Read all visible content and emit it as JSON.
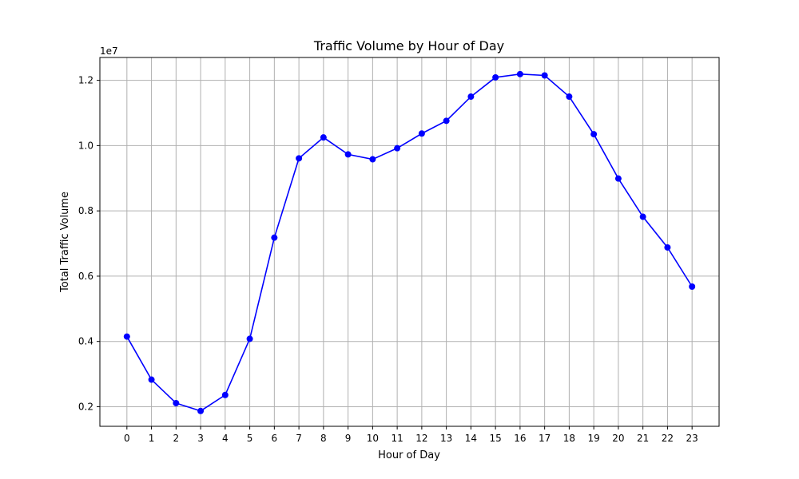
{
  "chart_data": {
    "type": "line",
    "title": "Traffic Volume by Hour of Day",
    "xlabel": "Hour of Day",
    "ylabel": "Total Traffic Volume",
    "y_offset_label": "1e7",
    "y_scale": 10000000,
    "x": [
      0,
      1,
      2,
      3,
      4,
      5,
      6,
      7,
      8,
      9,
      10,
      11,
      12,
      13,
      14,
      15,
      16,
      17,
      18,
      19,
      20,
      21,
      22,
      23
    ],
    "x_tick_labels": [
      "0",
      "1",
      "2",
      "3",
      "4",
      "5",
      "6",
      "7",
      "8",
      "9",
      "10",
      "11",
      "12",
      "13",
      "14",
      "15",
      "16",
      "17",
      "18",
      "19",
      "20",
      "21",
      "22",
      "23"
    ],
    "xlim": [
      -1.1,
      24.1
    ],
    "y_ticks": [
      0.2,
      0.4,
      0.6,
      0.8,
      1.0,
      1.2
    ],
    "y_tick_labels": [
      "0.2",
      "0.4",
      "0.6",
      "0.8",
      "1.0",
      "1.2"
    ],
    "ylim": [
      0.14,
      1.27
    ],
    "grid": true,
    "series": [
      {
        "color": "#0000ff",
        "marker": "circle",
        "values": [
          4150000,
          2830000,
          2110000,
          1870000,
          2360000,
          4080000,
          7180000,
          9610000,
          10250000,
          9730000,
          9580000,
          9920000,
          10370000,
          10760000,
          11500000,
          12090000,
          12190000,
          12150000,
          11500000,
          10350000,
          8990000,
          7820000,
          6880000,
          5680000
        ]
      }
    ]
  }
}
